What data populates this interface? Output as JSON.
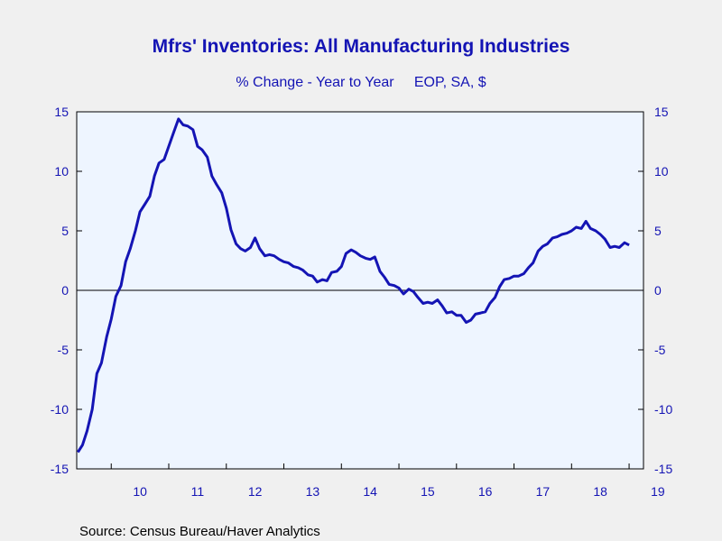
{
  "chart_data": {
    "type": "line",
    "title": "Mfrs' Inventories: All Manufacturing Industries",
    "subtitle": "% Change - Year to Year     EOP, SA, $",
    "source": "Source:  Census Bureau/Haver Analytics",
    "xlabel": "",
    "ylabel": "",
    "xlim": [
      2009.4,
      2019.25
    ],
    "ylim": [
      -15,
      15
    ],
    "y_ticks": [
      "15",
      "10",
      "5",
      "0",
      "-5",
      "-10",
      "-15"
    ],
    "y_ticks_right": [
      "15",
      "10",
      "5",
      "0",
      "-5",
      "-10",
      "-15"
    ],
    "x_ticks": [
      "10",
      "11",
      "12",
      "13",
      "14",
      "15",
      "16",
      "17",
      "18",
      "19"
    ],
    "grid": false,
    "zero_line": true,
    "colors": {
      "line": "#1414b4",
      "plot_bg": "#eef5ff",
      "page_bg": "#f0f0f0",
      "text": "#1414b4"
    },
    "series": [
      {
        "values": [
          [
            2009.42,
            -13.6
          ],
          [
            2009.5,
            -13.0
          ],
          [
            2009.58,
            -11.8
          ],
          [
            2009.67,
            -10.0
          ],
          [
            2009.75,
            -7.0
          ],
          [
            2009.83,
            -6.1
          ],
          [
            2009.92,
            -3.9
          ],
          [
            2010.0,
            -2.4
          ],
          [
            2010.08,
            -0.5
          ],
          [
            2010.17,
            0.4
          ],
          [
            2010.25,
            2.4
          ],
          [
            2010.33,
            3.5
          ],
          [
            2010.42,
            5.0
          ],
          [
            2010.5,
            6.6
          ],
          [
            2010.58,
            7.2
          ],
          [
            2010.67,
            7.9
          ],
          [
            2010.75,
            9.6
          ],
          [
            2010.83,
            10.7
          ],
          [
            2010.92,
            11.0
          ],
          [
            2011.0,
            12.1
          ],
          [
            2011.08,
            13.2
          ],
          [
            2011.17,
            14.4
          ],
          [
            2011.25,
            13.9
          ],
          [
            2011.33,
            13.8
          ],
          [
            2011.42,
            13.5
          ],
          [
            2011.5,
            12.1
          ],
          [
            2011.58,
            11.8
          ],
          [
            2011.67,
            11.2
          ],
          [
            2011.75,
            9.6
          ],
          [
            2011.83,
            8.9
          ],
          [
            2011.92,
            8.2
          ],
          [
            2012.0,
            6.9
          ],
          [
            2012.08,
            5.1
          ],
          [
            2012.17,
            3.9
          ],
          [
            2012.25,
            3.5
          ],
          [
            2012.33,
            3.3
          ],
          [
            2012.42,
            3.6
          ],
          [
            2012.5,
            4.4
          ],
          [
            2012.58,
            3.5
          ],
          [
            2012.67,
            2.9
          ],
          [
            2012.75,
            3.0
          ],
          [
            2012.83,
            2.9
          ],
          [
            2012.92,
            2.6
          ],
          [
            2013.0,
            2.4
          ],
          [
            2013.08,
            2.3
          ],
          [
            2013.17,
            2.0
          ],
          [
            2013.25,
            1.9
          ],
          [
            2013.33,
            1.7
          ],
          [
            2013.42,
            1.3
          ],
          [
            2013.5,
            1.2
          ],
          [
            2013.58,
            0.7
          ],
          [
            2013.67,
            0.9
          ],
          [
            2013.75,
            0.8
          ],
          [
            2013.83,
            1.5
          ],
          [
            2013.92,
            1.6
          ],
          [
            2014.0,
            2.0
          ],
          [
            2014.08,
            3.1
          ],
          [
            2014.17,
            3.4
          ],
          [
            2014.25,
            3.2
          ],
          [
            2014.33,
            2.9
          ],
          [
            2014.42,
            2.7
          ],
          [
            2014.5,
            2.6
          ],
          [
            2014.58,
            2.8
          ],
          [
            2014.67,
            1.6
          ],
          [
            2014.75,
            1.1
          ],
          [
            2014.83,
            0.5
          ],
          [
            2014.92,
            0.4
          ],
          [
            2015.0,
            0.2
          ],
          [
            2015.08,
            -0.3
          ],
          [
            2015.17,
            0.1
          ],
          [
            2015.25,
            -0.1
          ],
          [
            2015.33,
            -0.6
          ],
          [
            2015.42,
            -1.1
          ],
          [
            2015.5,
            -1.0
          ],
          [
            2015.58,
            -1.1
          ],
          [
            2015.67,
            -0.8
          ],
          [
            2015.75,
            -1.3
          ],
          [
            2015.83,
            -1.9
          ],
          [
            2015.92,
            -1.8
          ],
          [
            2016.0,
            -2.1
          ],
          [
            2016.08,
            -2.1
          ],
          [
            2016.17,
            -2.7
          ],
          [
            2016.25,
            -2.5
          ],
          [
            2016.33,
            -2.0
          ],
          [
            2016.42,
            -1.9
          ],
          [
            2016.5,
            -1.8
          ],
          [
            2016.58,
            -1.1
          ],
          [
            2016.67,
            -0.6
          ],
          [
            2016.75,
            0.3
          ],
          [
            2016.83,
            0.9
          ],
          [
            2016.92,
            1.0
          ],
          [
            2017.0,
            1.2
          ],
          [
            2017.08,
            1.2
          ],
          [
            2017.17,
            1.4
          ],
          [
            2017.25,
            1.9
          ],
          [
            2017.33,
            2.3
          ],
          [
            2017.42,
            3.3
          ],
          [
            2017.5,
            3.7
          ],
          [
            2017.58,
            3.9
          ],
          [
            2017.67,
            4.4
          ],
          [
            2017.75,
            4.5
          ],
          [
            2017.83,
            4.7
          ],
          [
            2017.92,
            4.8
          ],
          [
            2018.0,
            5.0
          ],
          [
            2018.08,
            5.3
          ],
          [
            2018.17,
            5.2
          ],
          [
            2018.25,
            5.8
          ],
          [
            2018.33,
            5.2
          ],
          [
            2018.42,
            5.0
          ],
          [
            2018.5,
            4.7
          ],
          [
            2018.58,
            4.3
          ],
          [
            2018.67,
            3.6
          ],
          [
            2018.75,
            3.7
          ],
          [
            2018.83,
            3.6
          ],
          [
            2018.92,
            4.0
          ],
          [
            2019.0,
            3.8
          ]
        ]
      }
    ]
  }
}
